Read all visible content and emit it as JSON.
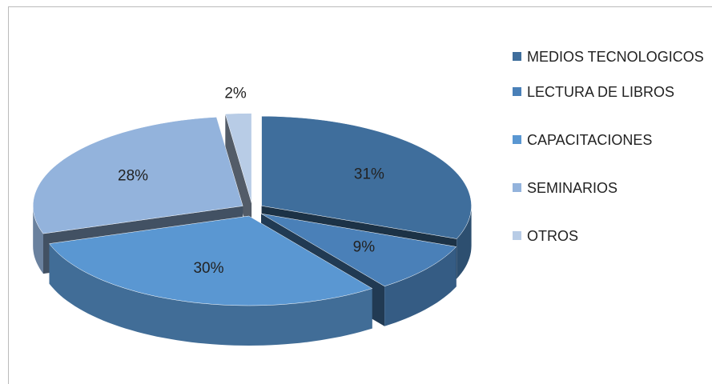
{
  "chart_data": {
    "type": "pie",
    "categories": [
      "MEDIOS TECNOLOGICOS",
      "LECTURA DE LIBROS",
      "CAPACITACIONES",
      "SEMINARIOS",
      "OTROS"
    ],
    "values": [
      31,
      9,
      30,
      28,
      2
    ],
    "value_labels": [
      "31%",
      "9%",
      "30%",
      "28%",
      "2%"
    ],
    "colors": [
      "#3f6e9c",
      "#4a80b8",
      "#5a97d2",
      "#93b3dc",
      "#b8cce6"
    ],
    "legend": "right"
  }
}
